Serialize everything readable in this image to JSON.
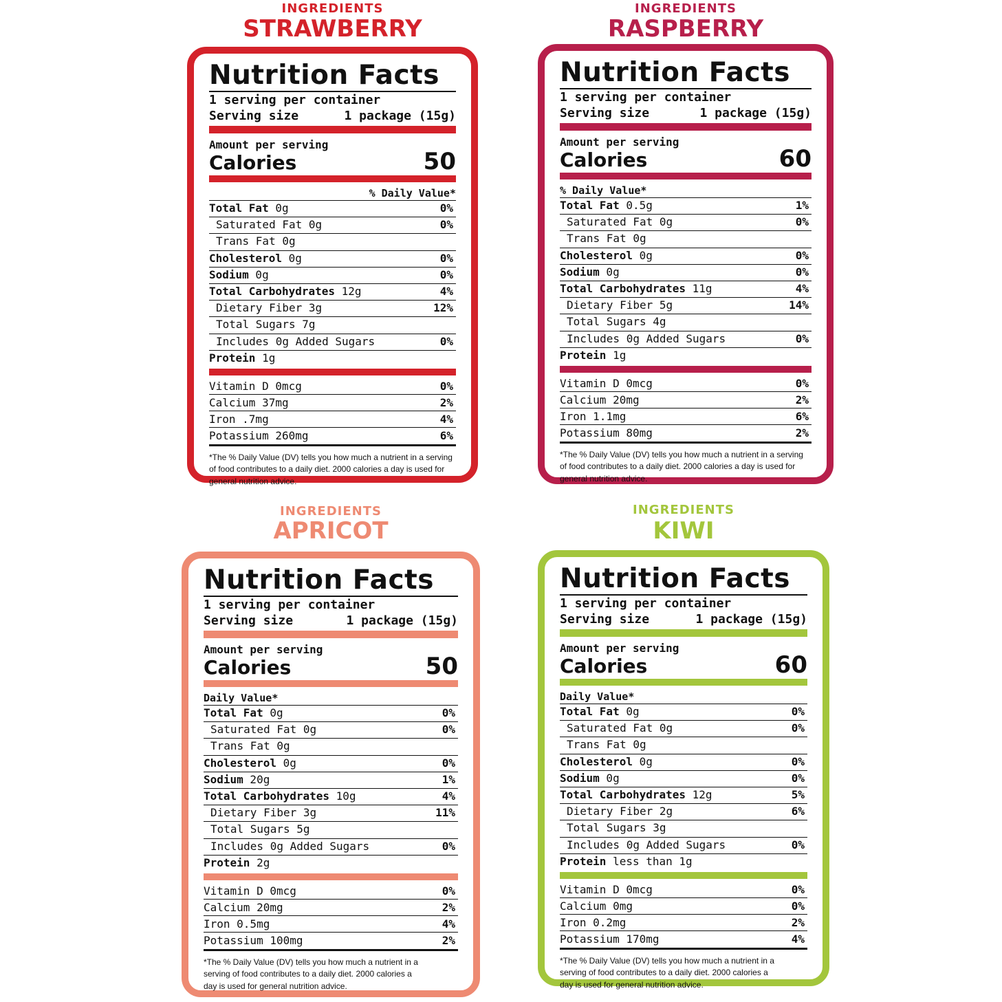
{
  "colors": {
    "strawberry": "#d4222a",
    "raspberry": "#b71f4b",
    "apricot": "#ee8a72",
    "kiwi": "#a3c63c"
  },
  "panels": [
    {
      "key": "strawberry",
      "eyebrow": "INGREDIENTS",
      "flavor": "STRAWBERRY",
      "title": "Nutrition Facts",
      "servings_per_container": "1 serving per container",
      "serving_size_label": "Serving size",
      "serving_size_value": "1 package (15g)",
      "amount_per_serving": "Amount per serving",
      "calories_label": "Calories",
      "calories_value": "50",
      "dv_header": "% Daily Value*",
      "nutrients": [
        {
          "bold_label": "Total Fat",
          "amount": "0g",
          "pct": "0%"
        },
        {
          "label": "Saturated Fat 0g",
          "pct": "0%"
        },
        {
          "label": "Trans Fat 0g",
          "pct": ""
        },
        {
          "bold_label": "Cholesterol",
          "amount": "0g",
          "pct": "0%"
        },
        {
          "bold_label": "Sodium",
          "amount": "0g",
          "pct": "0%"
        },
        {
          "bold_label": "Total Carbohydrates",
          "amount": "12g",
          "pct": "4%"
        },
        {
          "label": "Dietary Fiber 3g",
          "pct": "12%"
        },
        {
          "label": "Total Sugars 7g",
          "pct": ""
        },
        {
          "label": "Includes 0g Added Sugars",
          "pct": "0%"
        },
        {
          "bold_label": "Protein",
          "amount": "1g",
          "pct": ""
        }
      ],
      "vitamins": [
        {
          "label": "Vitamin D 0mcg",
          "pct": "0%"
        },
        {
          "label": "Calcium 37mg",
          "pct": "2%"
        },
        {
          "label": "Iron .7mg",
          "pct": "4%"
        },
        {
          "label": "Potassium 260mg",
          "pct": "6%"
        }
      ],
      "footnote": [
        "*The % Daily Value (DV) tells you how much a nutrient in a serving",
        "of food contributes to a daily diet. 2000 calories a day is used for",
        "general nutrition advice."
      ]
    },
    {
      "key": "raspberry",
      "eyebrow": "INGREDIENTS",
      "flavor": "RASPBERRY",
      "title": "Nutrition Facts",
      "servings_per_container": "1 serving per container",
      "serving_size_label": "Serving size",
      "serving_size_value": "1 package (15g)",
      "amount_per_serving": "Amount per serving",
      "calories_label": "Calories",
      "calories_value": "60",
      "dv_header": "% Daily Value*",
      "nutrients": [
        {
          "bold_label": "Total Fat",
          "amount": "0.5g",
          "pct": "1%"
        },
        {
          "label": "Saturated Fat 0g",
          "pct": "0%"
        },
        {
          "label": "Trans Fat 0g",
          "pct": ""
        },
        {
          "bold_label": "Cholesterol",
          "amount": "0g",
          "pct": "0%"
        },
        {
          "bold_label": "Sodium",
          "amount": "0g",
          "pct": "0%"
        },
        {
          "bold_label": "Total Carbohydrates",
          "amount": "11g",
          "pct": "4%"
        },
        {
          "label": "Dietary Fiber 5g",
          "pct": "14%"
        },
        {
          "label": "Total Sugars 4g",
          "pct": ""
        },
        {
          "label": "Includes 0g Added Sugars",
          "pct": "0%"
        },
        {
          "bold_label": "Protein",
          "amount": "1g",
          "pct": ""
        }
      ],
      "vitamins": [
        {
          "label": "Vitamin D 0mcg",
          "pct": "0%"
        },
        {
          "label": "Calcium 20mg",
          "pct": "2%"
        },
        {
          "label": "Iron 1.1mg",
          "pct": "6%"
        },
        {
          "label": "Potassium 80mg",
          "pct": "2%"
        }
      ],
      "footnote": [
        "*The % Daily Value (DV) tells you how much a nutrient in a serving",
        "of food contributes to a daily diet. 2000 calories a day is used for",
        "general nutrition advice."
      ]
    },
    {
      "key": "apricot",
      "eyebrow": "INGREDIENTS",
      "flavor": "APRICOT",
      "title": "Nutrition Facts",
      "servings_per_container": "1 serving per container",
      "serving_size_label": "Serving size",
      "serving_size_value": "1 package (15g)",
      "amount_per_serving": "Amount per serving",
      "calories_label": "Calories",
      "calories_value": "50",
      "dv_header": "Daily Value*",
      "nutrients": [
        {
          "bold_label": "Total Fat",
          "amount": "0g",
          "pct": "0%"
        },
        {
          "label": "Saturated Fat 0g",
          "pct": "0%"
        },
        {
          "label": "Trans Fat 0g",
          "pct": ""
        },
        {
          "bold_label": "Cholesterol",
          "amount": "0g",
          "pct": "0%"
        },
        {
          "bold_label": "Sodium",
          "amount": "20g",
          "pct": "1%"
        },
        {
          "bold_label": "Total Carbohydrates",
          "amount": "10g",
          "pct": "4%"
        },
        {
          "label": "Dietary Fiber 3g",
          "pct": "11%"
        },
        {
          "label": "Total Sugars 5g",
          "pct": ""
        },
        {
          "label": "Includes 0g Added Sugars",
          "pct": "0%"
        },
        {
          "bold_label": "Protein",
          "amount": "2g",
          "pct": ""
        }
      ],
      "vitamins": [
        {
          "label": "Vitamin D 0mcg",
          "pct": "0%"
        },
        {
          "label": "Calcium 20mg",
          "pct": "2%"
        },
        {
          "label": "Iron 0.5mg",
          "pct": "4%"
        },
        {
          "label": "Potassium 100mg",
          "pct": "2%"
        }
      ],
      "footnote": [
        "*The % Daily Value (DV) tells you how much a nutrient in a",
        "serving of food contributes to a daily diet. 2000 calories a",
        "day is used for general nutrition advice."
      ]
    },
    {
      "key": "kiwi",
      "eyebrow": "INGREDIENTS",
      "flavor": "KIWI",
      "title": "Nutrition Facts",
      "servings_per_container": "1 serving per container",
      "serving_size_label": "Serving size",
      "serving_size_value": "1 package (15g)",
      "amount_per_serving": "Amount per serving",
      "calories_label": "Calories",
      "calories_value": "60",
      "dv_header": "Daily Value*",
      "nutrients": [
        {
          "bold_label": "Total Fat",
          "amount": "0g",
          "pct": "0%"
        },
        {
          "label": "Saturated Fat 0g",
          "pct": "0%"
        },
        {
          "label": "Trans Fat 0g",
          "pct": ""
        },
        {
          "bold_label": "Cholesterol",
          "amount": "0g",
          "pct": "0%"
        },
        {
          "bold_label": "Sodium",
          "amount": "0g",
          "pct": "0%"
        },
        {
          "bold_label": "Total Carbohydrates",
          "amount": "12g",
          "pct": "5%"
        },
        {
          "label": "Dietary Fiber 2g",
          "pct": "6%"
        },
        {
          "label": "Total Sugars 3g",
          "pct": ""
        },
        {
          "label": "Includes 0g Added Sugars",
          "pct": "0%"
        },
        {
          "bold_label": "Protein",
          "amount": "less than 1g",
          "pct": ""
        }
      ],
      "vitamins": [
        {
          "label": "Vitamin D 0mcg",
          "pct": "0%"
        },
        {
          "label": "Calcium 0mg",
          "pct": "0%"
        },
        {
          "label": "Iron 0.2mg",
          "pct": "2%"
        },
        {
          "label": "Potassium 170mg",
          "pct": "4%"
        }
      ],
      "footnote": [
        "*The % Daily Value (DV) tells you how much a nutrient in a",
        "serving of food contributes to a daily diet. 2000 calories a",
        "day is used for general nutrition advice."
      ]
    }
  ]
}
